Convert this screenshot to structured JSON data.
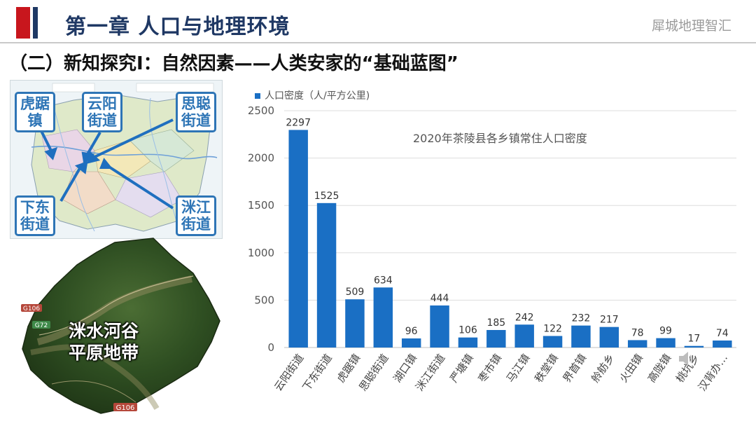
{
  "header": {
    "chapter_title": "第一章  人口与地理环境",
    "brand": "犀城地理智汇"
  },
  "section_title": "（二）新知探究Ⅰ：自然因素——人类安家的“基础蓝图”",
  "map": {
    "labels": {
      "huju": "虎踞镇",
      "yunyang": "云阳街道",
      "sicong": "思聪街道",
      "xiadong": "下东街道",
      "mijiang": "洣江街道"
    },
    "label_color": "#2e75b6",
    "arrow_color": "#1f6fbf"
  },
  "satellite": {
    "caption_line1": "洣水河谷",
    "caption_line2": "平原地带",
    "road_g106_top": "G106",
    "road_g72": "G72",
    "road_g106_bottom": "G106"
  },
  "chart_data": {
    "type": "bar",
    "title": "2020年茶陵县各乡镇常住人口密度",
    "legend": [
      {
        "name": "人口密度（人/平方公里)",
        "color": "#1a6fc4"
      }
    ],
    "legend_position": "top-left",
    "categories": [
      "云阳街道",
      "下东街道",
      "虎踞镇",
      "思聪街道",
      "湖口镇",
      "洣江街道",
      "严塘镇",
      "枣市镇",
      "马江镇",
      "秩堂镇",
      "界首镇",
      "舲舫乡",
      "火田镇",
      "高陇镇",
      "桃坑乡",
      "汉背办…"
    ],
    "series": [
      {
        "name": "人口密度（人/平方公里)",
        "values": [
          2297,
          1525,
          509,
          634,
          96,
          444,
          106,
          185,
          242,
          122,
          232,
          217,
          78,
          99,
          17,
          74
        ]
      }
    ],
    "yticks": [
      0,
      500,
      1000,
      1500,
      2000,
      2500
    ],
    "ylim": [
      0,
      2500
    ],
    "grid": true,
    "bar_color": "#1a6fc4"
  }
}
